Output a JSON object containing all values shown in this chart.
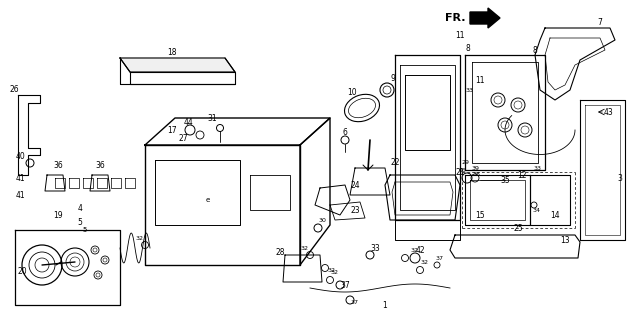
{
  "background_color": "#ffffff",
  "fig_width": 6.38,
  "fig_height": 3.2,
  "dpi": 100,
  "image_data_b64": ""
}
